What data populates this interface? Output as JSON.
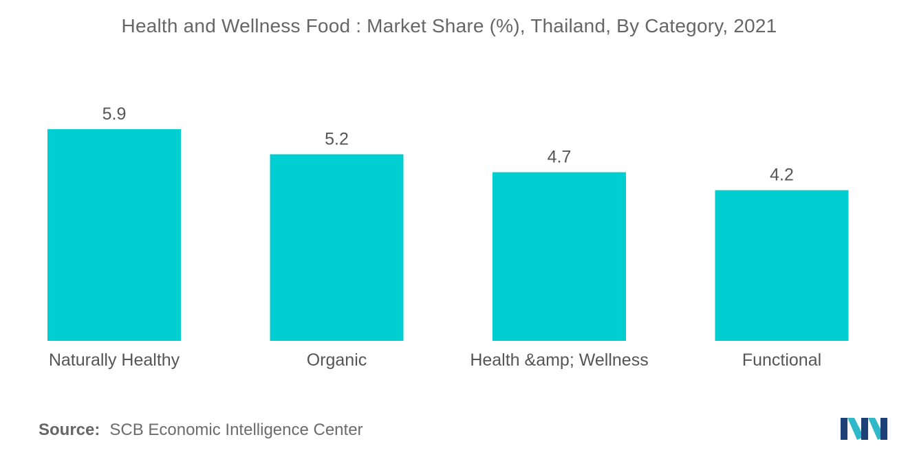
{
  "chart_data": {
    "type": "bar",
    "title": "Health and Wellness Food : Market Share (%), Thailand, By Category, 2021",
    "categories": [
      "Naturally Healthy",
      "Organic",
      "Health &amp; Wellness",
      "Functional"
    ],
    "values": [
      5.9,
      5.2,
      4.7,
      4.2
    ],
    "value_labels": [
      "5.9",
      "5.2",
      "4.7",
      "4.2"
    ],
    "xlabel": "",
    "ylabel": "",
    "ylim": [
      0,
      5.9
    ],
    "grid": false,
    "legend": "none",
    "bar_color": "#00CED1"
  },
  "source": {
    "label": "Source:",
    "text": "SCB Economic Intelligence Center"
  },
  "brand": {
    "logo_icon": "mordor-logo-icon",
    "colors": [
      "#1f3f77",
      "#2fb8c9"
    ]
  }
}
